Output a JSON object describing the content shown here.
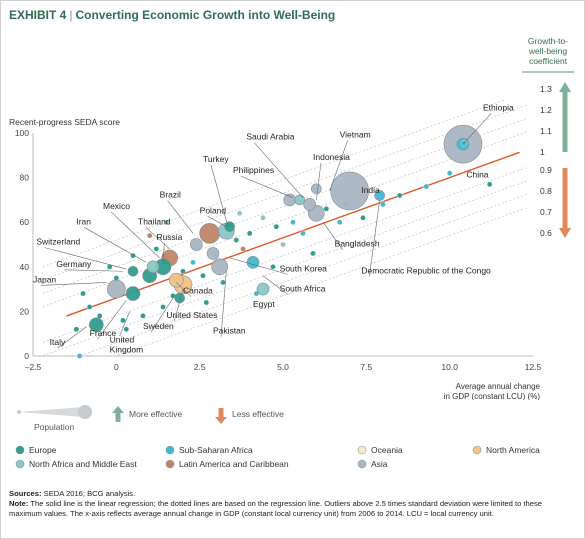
{
  "title": {
    "exhibit": "EXHIBIT 4",
    "separator": "|",
    "text": "Converting Economic Growth into Well-Being"
  },
  "chart_data": {
    "type": "scatter",
    "ylabel": "Recent-progress SEDA score",
    "xlabel_line1": "Average annual change",
    "xlabel_line2": "in GDP (constant LCU) (%)",
    "x_ticks": [
      "–2.5",
      "0",
      "2.5",
      "5.0",
      "7.5",
      "10.0",
      "12.5"
    ],
    "y_ticks": [
      "0",
      "20",
      "40",
      "60",
      "80",
      "100"
    ],
    "xlim": [
      -2.5,
      12.5
    ],
    "ylim": [
      0,
      100
    ],
    "regression": {
      "intercept": 26,
      "slope": 5.4
    },
    "band_offsets": [
      -26,
      -20,
      -14,
      -8,
      8,
      14,
      20,
      26
    ],
    "coef_scale": {
      "title": [
        "Growth-to-",
        "well-being",
        "coefficient"
      ],
      "upper_ticks": [
        "1.3",
        "1.2",
        "1.1",
        "1"
      ],
      "lower_ticks": [
        "0.9",
        "0.8",
        "0.7",
        "0.6"
      ]
    },
    "region_colors": {
      "europe": "#2f9e8f",
      "sub_saharan_africa": "#45b8d0",
      "oceania": "#f4ebbf",
      "north_america": "#f0c48a",
      "north_africa_middle_east": "#8cc7c4",
      "latin_america_caribbean": "#c08568",
      "asia": "#a9b6c2"
    },
    "labeled_points": [
      {
        "name": "Ethiopia",
        "x": 10.4,
        "y": 95,
        "s": 6,
        "region": "sub_saharan_africa",
        "lx": 11.0,
        "ly": 110,
        "anchor": "start",
        "lineTo": [
          10.4,
          95
        ]
      },
      {
        "name": "Vietnam",
        "x": 6.0,
        "y": 75,
        "s": 5,
        "region": "asia",
        "lx": 6.7,
        "ly": 98,
        "anchor": "start",
        "lineTo": [
          6.4,
          74
        ]
      },
      {
        "name": "Saudi Arabia",
        "x": 5.5,
        "y": 70,
        "s": 5,
        "region": "north_africa_middle_east",
        "lx": 3.9,
        "ly": 97,
        "anchor": "start",
        "lineTo": [
          5.6,
          71
        ]
      },
      {
        "name": "Indonesia",
        "x": 5.8,
        "y": 68,
        "s": 6,
        "region": "asia",
        "lx": 5.9,
        "ly": 88,
        "anchor": "start",
        "lineTo": [
          6.0,
          70
        ]
      },
      {
        "name": "Philippines",
        "x": 5.2,
        "y": 70,
        "s": 6,
        "region": "asia",
        "lx": 3.5,
        "ly": 82,
        "anchor": "start",
        "lineTo": [
          5.3,
          71
        ]
      },
      {
        "name": "China",
        "x": 10.4,
        "y": 95,
        "s": 19,
        "region": "asia",
        "lx": 10.5,
        "ly": 80,
        "anchor": "start",
        "lineTo": null
      },
      {
        "name": "India",
        "x": 7.0,
        "y": 74,
        "s": 19,
        "region": "asia",
        "lx": 7.35,
        "ly": 73,
        "anchor": "start",
        "lineTo": null
      },
      {
        "name": "Bangladesh",
        "x": 6.0,
        "y": 64,
        "s": 8,
        "region": "asia",
        "lx": 6.55,
        "ly": 49,
        "anchor": "start",
        "lineTo": [
          6.2,
          60
        ]
      },
      {
        "name": "Democratic Republic of the Congo",
        "x": 7.9,
        "y": 72,
        "s": 5,
        "region": "sub_saharan_africa",
        "lx": 7.35,
        "ly": 37,
        "anchor": "start",
        "lineTo": [
          7.9,
          70
        ]
      },
      {
        "name": "Turkey",
        "x": 3.3,
        "y": 56,
        "s": 8,
        "region": "north_africa_middle_east",
        "lx": 2.6,
        "ly": 87,
        "anchor": "start",
        "lineTo": [
          3.35,
          58
        ]
      },
      {
        "name": "Poland",
        "x": 3.4,
        "y": 58,
        "s": 5,
        "region": "europe",
        "lx": 2.5,
        "ly": 64,
        "anchor": "start",
        "lineTo": [
          3.3,
          58
        ]
      },
      {
        "name": "Brazil",
        "x": 2.8,
        "y": 55,
        "s": 10,
        "region": "latin_america_caribbean",
        "lx": 1.3,
        "ly": 71,
        "anchor": "start",
        "lineTo": [
          2.3,
          55
        ]
      },
      {
        "name": "Thailand",
        "x": 2.4,
        "y": 50,
        "s": 6,
        "region": "asia",
        "lx": 0.65,
        "ly": 59,
        "anchor": "start",
        "lineTo": [
          1.6,
          48
        ]
      },
      {
        "name": "Mexico",
        "x": 1.6,
        "y": 44,
        "s": 8,
        "region": "latin_america_caribbean",
        "lx": -0.4,
        "ly": 66,
        "anchor": "start",
        "lineTo": [
          1.3,
          44
        ]
      },
      {
        "name": "Russia",
        "x": 1.4,
        "y": 40,
        "s": 8,
        "region": "europe",
        "lx": 1.2,
        "ly": 52,
        "anchor": "start",
        "lineTo": [
          1.4,
          42
        ]
      },
      {
        "name": "Iran",
        "x": 1.1,
        "y": 40,
        "s": 6,
        "region": "north_africa_middle_east",
        "lx": -1.2,
        "ly": 59,
        "anchor": "start",
        "lineTo": [
          0.9,
          42
        ]
      },
      {
        "name": "Switzerland",
        "x": 0.5,
        "y": 38,
        "s": 5,
        "region": "europe",
        "lx": -2.4,
        "ly": 50,
        "anchor": "start",
        "lineTo": [
          0.3,
          39
        ]
      },
      {
        "name": "Germany",
        "x": 1.0,
        "y": 36,
        "s": 7,
        "region": "europe",
        "lx": -1.8,
        "ly": 40,
        "anchor": "start",
        "lineTo": [
          0.2,
          38
        ]
      },
      {
        "name": "Japan",
        "x": 0.0,
        "y": 30,
        "s": 9,
        "region": "asia",
        "lx": -2.5,
        "ly": 33,
        "anchor": "start",
        "lineTo": [
          -0.3,
          33
        ]
      },
      {
        "name": "Canada",
        "x": 1.8,
        "y": 34,
        "s": 7,
        "region": "north_america",
        "lx": 2.0,
        "ly": 28,
        "anchor": "start",
        "lineTo": [
          1.8,
          33
        ]
      },
      {
        "name": "South Korea",
        "x": 2.9,
        "y": 46,
        "s": 6,
        "region": "asia",
        "lx": 4.9,
        "ly": 38,
        "anchor": "start",
        "lineTo": [
          3.4,
          44
        ]
      },
      {
        "name": "South Africa",
        "x": 4.1,
        "y": 42,
        "s": 6,
        "region": "sub_saharan_africa",
        "lx": 4.9,
        "ly": 29,
        "anchor": "start",
        "lineTo": [
          4.4,
          36
        ]
      },
      {
        "name": "Egypt",
        "x": 4.4,
        "y": 30,
        "s": 6,
        "region": "north_africa_middle_east",
        "lx": 4.1,
        "ly": 22,
        "anchor": "start",
        "lineTo": null
      },
      {
        "name": "Pakistan",
        "x": 3.1,
        "y": 40,
        "s": 8,
        "region": "asia",
        "lx": 2.9,
        "ly": 10,
        "anchor": "start",
        "lineTo": [
          3.3,
          38
        ]
      },
      {
        "name": "United States",
        "x": 2.0,
        "y": 32,
        "s": 9,
        "region": "north_america",
        "lx": 1.5,
        "ly": 17,
        "anchor": "start",
        "lineTo": [
          2.0,
          30
        ]
      },
      {
        "name": "Sweden",
        "x": 1.9,
        "y": 26,
        "s": 5,
        "region": "europe",
        "lx": 0.8,
        "ly": 12,
        "anchor": "start",
        "lineTo": [
          1.7,
          26
        ]
      },
      {
        "name": "France",
        "x": 0.5,
        "y": 28,
        "s": 7,
        "region": "europe",
        "lx": -0.8,
        "ly": 9,
        "anchor": "start",
        "lineTo": [
          0.3,
          25
        ]
      },
      {
        "name": "Italy",
        "x": -0.6,
        "y": 14,
        "s": 7,
        "region": "europe",
        "lx": -2.0,
        "ly": 5,
        "anchor": "start",
        "lineTo": [
          -0.9,
          13
        ]
      }
    ],
    "unlabeled_points": [
      {
        "x": -1.0,
        "y": 28,
        "region": "europe"
      },
      {
        "x": -0.8,
        "y": 22,
        "region": "europe"
      },
      {
        "x": -0.5,
        "y": 18,
        "region": "europe"
      },
      {
        "x": -1.2,
        "y": 12,
        "region": "europe"
      },
      {
        "x": -1.1,
        "y": 0,
        "region": "sub_saharan_africa"
      },
      {
        "x": 0.3,
        "y": 12,
        "region": "europe"
      },
      {
        "x": 0.8,
        "y": 18,
        "region": "europe"
      },
      {
        "x": 1.4,
        "y": 22,
        "region": "europe"
      },
      {
        "x": 1.7,
        "y": 27,
        "region": "europe"
      },
      {
        "x": 0.0,
        "y": 35,
        "region": "europe"
      },
      {
        "x": 0.5,
        "y": 45,
        "region": "europe"
      },
      {
        "x": 1.2,
        "y": 48,
        "region": "europe"
      },
      {
        "x": 2.0,
        "y": 38,
        "region": "europe"
      },
      {
        "x": 2.3,
        "y": 42,
        "region": "sub_saharan_africa"
      },
      {
        "x": 2.6,
        "y": 36,
        "region": "europe"
      },
      {
        "x": 3.0,
        "y": 45,
        "region": "europe"
      },
      {
        "x": 3.6,
        "y": 52,
        "region": "europe"
      },
      {
        "x": 3.8,
        "y": 48,
        "region": "latin_america_caribbean"
      },
      {
        "x": 4.0,
        "y": 55,
        "region": "europe"
      },
      {
        "x": 4.4,
        "y": 62,
        "region": "north_africa_middle_east"
      },
      {
        "x": 4.8,
        "y": 58,
        "region": "europe"
      },
      {
        "x": 5.0,
        "y": 50,
        "region": "asia"
      },
      {
        "x": 5.3,
        "y": 60,
        "region": "sub_saharan_africa"
      },
      {
        "x": 5.6,
        "y": 55,
        "region": "sub_saharan_africa"
      },
      {
        "x": 6.3,
        "y": 66,
        "region": "europe"
      },
      {
        "x": 6.7,
        "y": 60,
        "region": "sub_saharan_africa"
      },
      {
        "x": 6.9,
        "y": 68,
        "region": "europe"
      },
      {
        "x": 8.0,
        "y": 68,
        "region": "sub_saharan_africa"
      },
      {
        "x": 8.5,
        "y": 72,
        "region": "europe"
      },
      {
        "x": 9.3,
        "y": 76,
        "region": "sub_saharan_africa"
      },
      {
        "x": 10.0,
        "y": 82,
        "region": "sub_saharan_africa"
      },
      {
        "x": 11.2,
        "y": 77,
        "region": "europe"
      },
      {
        "x": 4.7,
        "y": 40,
        "region": "europe"
      },
      {
        "x": 3.2,
        "y": 33,
        "region": "europe"
      },
      {
        "x": 2.2,
        "y": 31,
        "region": "latin_america_caribbean"
      },
      {
        "x": -0.2,
        "y": 40,
        "region": "europe"
      },
      {
        "x": 1.0,
        "y": 54,
        "region": "latin_america_caribbean"
      },
      {
        "x": 3.7,
        "y": 64,
        "region": "north_africa_middle_east"
      },
      {
        "x": 5.9,
        "y": 46,
        "region": "europe"
      },
      {
        "x": 4.2,
        "y": 28,
        "region": "sub_saharan_africa"
      },
      {
        "x": 7.4,
        "y": 62,
        "region": "europe"
      },
      {
        "x": 2.7,
        "y": 24,
        "region": "europe"
      },
      {
        "x": 0.2,
        "y": 16,
        "region": "europe"
      },
      {
        "x": 1.5,
        "y": 60,
        "region": "north_africa_middle_east"
      }
    ]
  },
  "legend": {
    "population_label": "Population",
    "more_effective": "More effective",
    "less_effective": "Less effective",
    "regions": [
      {
        "key": "europe",
        "label": "Europe"
      },
      {
        "key": "sub_saharan_africa",
        "label": "Sub-Saharan Africa"
      },
      {
        "key": "oceania",
        "label": "Oceania"
      },
      {
        "key": "north_america",
        "label": "North America"
      },
      {
        "key": "north_africa_middle_east",
        "label": "North Africa and Middle East"
      },
      {
        "key": "latin_america_caribbean",
        "label": "Latin America and Caribbean"
      },
      {
        "key": "asia",
        "label": "Asia"
      }
    ]
  },
  "notes": {
    "sources_label": "Sources:",
    "sources_text": "SEDA 2016; BCG analysis.",
    "note_label": "Note:",
    "note_text": "The solid line is the linear regression; the dotted lines are based on the regression line. Outliers above 2.5 times standard deviation were limited to these maximum values. The x-axis reflects average annual change in GDP (constant local currency unit) from 2006 to 2014. LCU = local currency unit."
  }
}
